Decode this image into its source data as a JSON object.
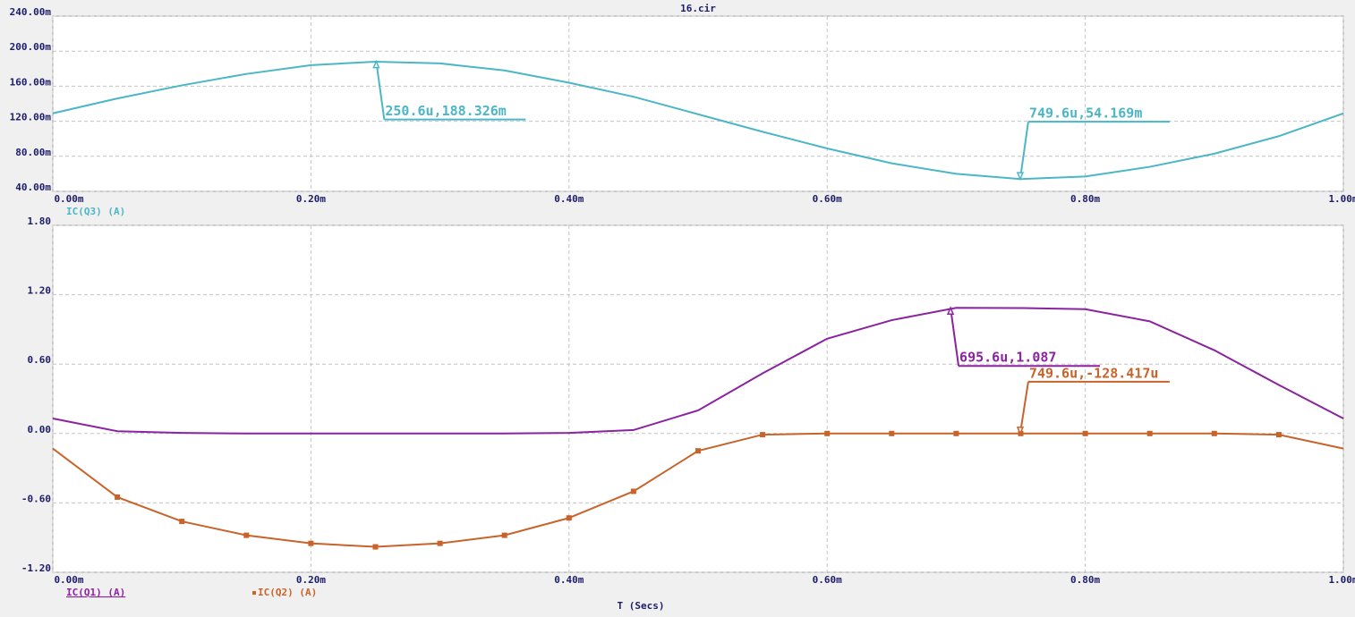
{
  "chart_data": [
    {
      "type": "line",
      "title": "16.cir",
      "x": [
        0,
        0.05,
        0.1,
        0.15,
        0.2,
        0.25,
        0.3,
        0.35,
        0.4,
        0.45,
        0.5,
        0.55,
        0.6,
        0.65,
        0.7,
        0.75,
        0.8,
        0.85,
        0.9,
        0.95,
        1.0
      ],
      "series": [
        {
          "name": "IC(Q3) (A)",
          "color": "#4bb6c6",
          "values": [
            129,
            146,
            161,
            174,
            184,
            188,
            186,
            178,
            164,
            148,
            128,
            108,
            89,
            72,
            60,
            54,
            57,
            68,
            83,
            103,
            129
          ]
        }
      ],
      "xlim": [
        0,
        1
      ],
      "ylim": [
        40,
        240
      ],
      "xticks": [
        {
          "value": 0,
          "label": "0.00m"
        },
        {
          "value": 0.2,
          "label": "0.20m"
        },
        {
          "value": 0.4,
          "label": "0.40m"
        },
        {
          "value": 0.6,
          "label": "0.60m"
        },
        {
          "value": 0.8,
          "label": "0.80m"
        },
        {
          "value": 1.0,
          "label": "1.00m"
        }
      ],
      "yticks": [
        {
          "value": 40,
          "label": "40.00m"
        },
        {
          "value": 80,
          "label": "80.00m"
        },
        {
          "value": 120,
          "label": "120.00m"
        },
        {
          "value": 160,
          "label": "160.00m"
        },
        {
          "value": 200,
          "label": "200.00m"
        },
        {
          "value": 240,
          "label": "240.00m"
        }
      ],
      "grid": true,
      "annotations": [
        {
          "text": "250.6u,188.326m",
          "x": 0.2506,
          "y": 188.326,
          "series": 0
        },
        {
          "text": "749.6u,54.169m",
          "x": 0.7496,
          "y": 54.169,
          "series": 0
        }
      ]
    },
    {
      "type": "line",
      "xlabel": "T (Secs)",
      "x": [
        0,
        0.05,
        0.1,
        0.15,
        0.2,
        0.25,
        0.3,
        0.35,
        0.4,
        0.45,
        0.5,
        0.55,
        0.6,
        0.65,
        0.7,
        0.75,
        0.8,
        0.85,
        0.9,
        0.95,
        1.0
      ],
      "series": [
        {
          "name": "IC(Q1) (A)",
          "color": "#8b22a0",
          "values": [
            0.13,
            0.02,
            0.005,
            0,
            0,
            0,
            0,
            0,
            0.005,
            0.03,
            0.2,
            0.52,
            0.82,
            0.98,
            1.087,
            1.085,
            1.075,
            0.97,
            0.72,
            0.42,
            0.13
          ]
        },
        {
          "name": "IC(Q2) (A)",
          "color": "#c8632a",
          "markers": true,
          "values": [
            -0.13,
            -0.55,
            -0.76,
            -0.88,
            -0.95,
            -0.98,
            -0.95,
            -0.88,
            -0.73,
            -0.5,
            -0.15,
            -0.01,
            0,
            0,
            0,
            0,
            0,
            0,
            0,
            -0.01,
            -0.13
          ]
        }
      ],
      "xlim": [
        0,
        1
      ],
      "ylim": [
        -1.2,
        1.8
      ],
      "xticks": [
        {
          "value": 0,
          "label": "0.00m"
        },
        {
          "value": 0.2,
          "label": "0.20m"
        },
        {
          "value": 0.4,
          "label": "0.40m"
        },
        {
          "value": 0.6,
          "label": "0.60m"
        },
        {
          "value": 0.8,
          "label": "0.80m"
        },
        {
          "value": 1.0,
          "label": "1.00m"
        }
      ],
      "yticks": [
        {
          "value": -1.2,
          "label": "-1.20"
        },
        {
          "value": -0.6,
          "label": "-0.60"
        },
        {
          "value": 0,
          "label": "0.00"
        },
        {
          "value": 0.6,
          "label": "0.60"
        },
        {
          "value": 1.2,
          "label": "1.20"
        },
        {
          "value": 1.8,
          "label": "1.80"
        }
      ],
      "grid": true,
      "annotations": [
        {
          "text": "695.6u,1.087",
          "x": 0.6956,
          "y": 1.087,
          "series": 0
        },
        {
          "text": "749.6u,-128.417u",
          "x": 0.7496,
          "y": -0.000128417,
          "series": 1
        }
      ]
    }
  ]
}
